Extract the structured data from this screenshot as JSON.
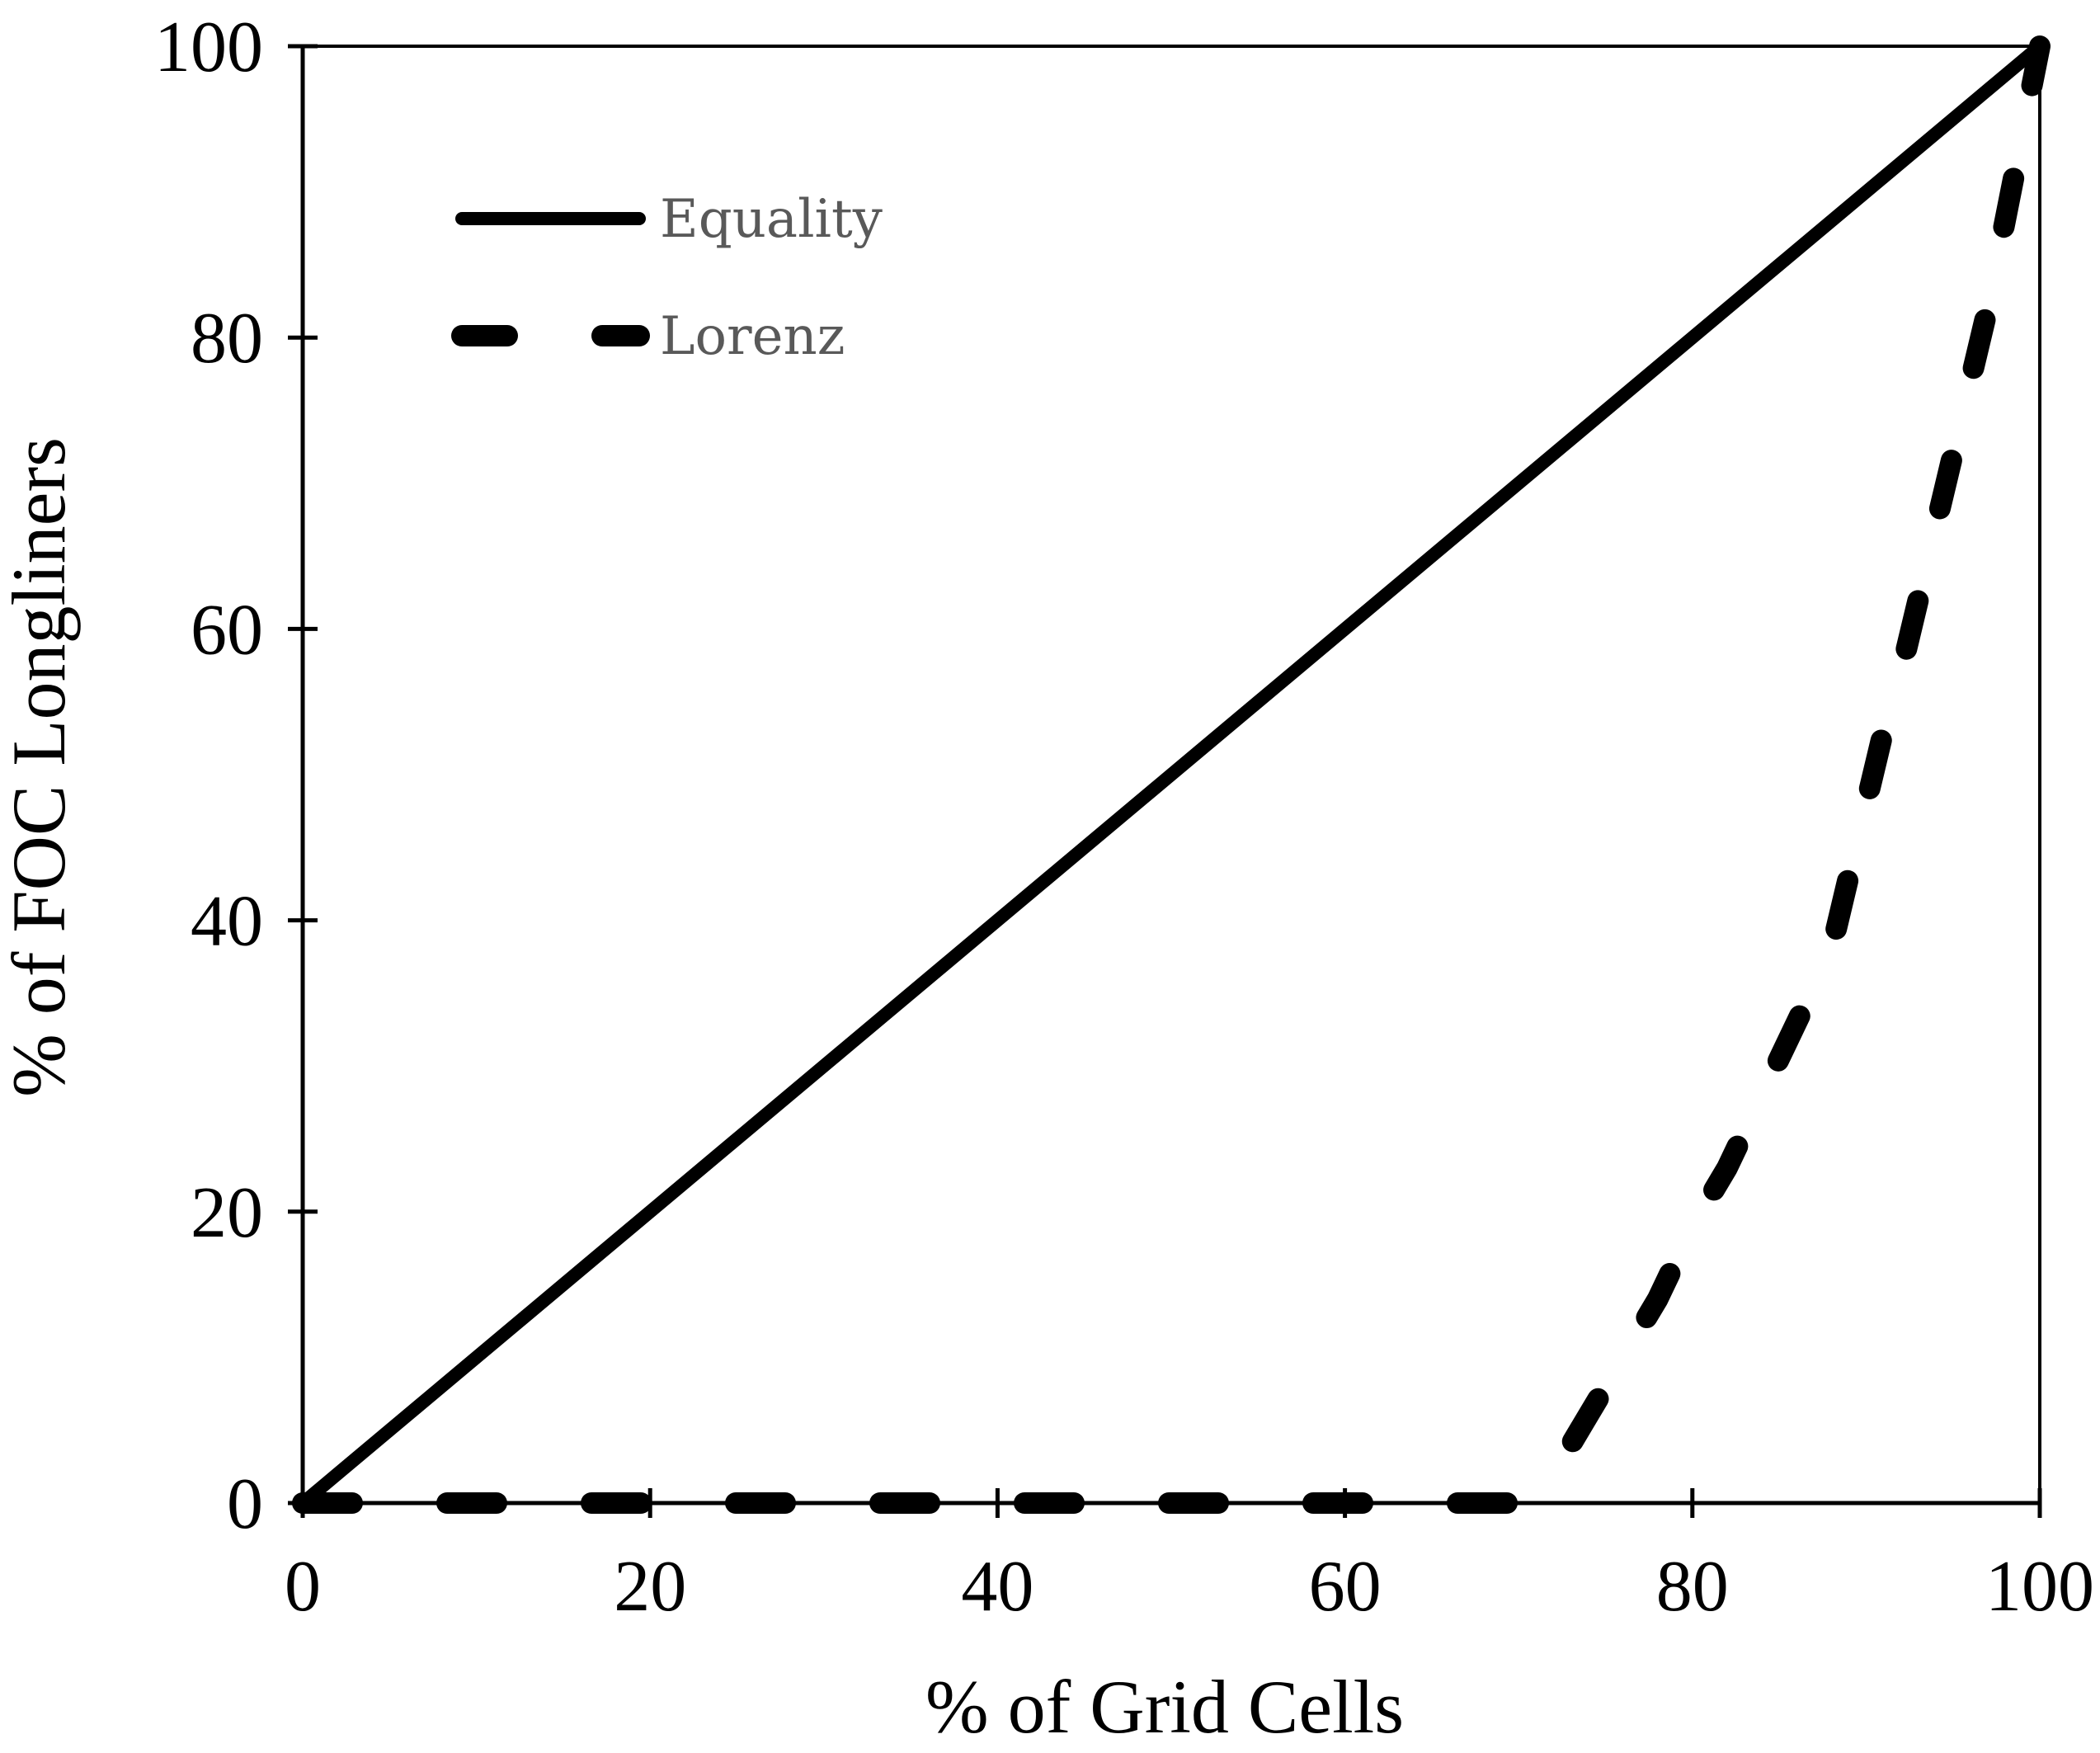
{
  "chart_data": {
    "type": "line",
    "title": "",
    "xlabel": "% of Grid Cells",
    "ylabel": "% of FOC Longliners",
    "xlim": [
      0,
      100
    ],
    "ylim": [
      0,
      100
    ],
    "x_ticks": [
      0,
      20,
      40,
      60,
      80,
      100
    ],
    "y_ticks": [
      0,
      20,
      40,
      60,
      80,
      100
    ],
    "x_tick_labels": [
      "0",
      "20",
      "40",
      "60",
      "80",
      "100"
    ],
    "y_tick_labels": [
      "0",
      "20",
      "40",
      "60",
      "80",
      "100"
    ],
    "grid": false,
    "legend_position": "top-left",
    "series": [
      {
        "name": "Equality",
        "style": "solid",
        "color": "#000000",
        "x": [
          0,
          100
        ],
        "y": [
          0,
          100
        ]
      },
      {
        "name": "Lorenz",
        "style": "dashed",
        "color": "#000000",
        "x": [
          0,
          10,
          20,
          30,
          40,
          50,
          60,
          70,
          72,
          74,
          76,
          78,
          80,
          82,
          84,
          86,
          88,
          89,
          90,
          91,
          92,
          93,
          94,
          95,
          96,
          97,
          98,
          99,
          100
        ],
        "y": [
          0,
          0,
          0,
          0,
          0,
          0,
          0,
          0,
          2,
          6,
          10,
          14,
          19,
          23,
          28,
          33,
          38,
          43,
          48,
          53,
          57,
          62,
          67,
          72,
          77,
          82,
          88,
          94,
          100
        ]
      }
    ]
  }
}
